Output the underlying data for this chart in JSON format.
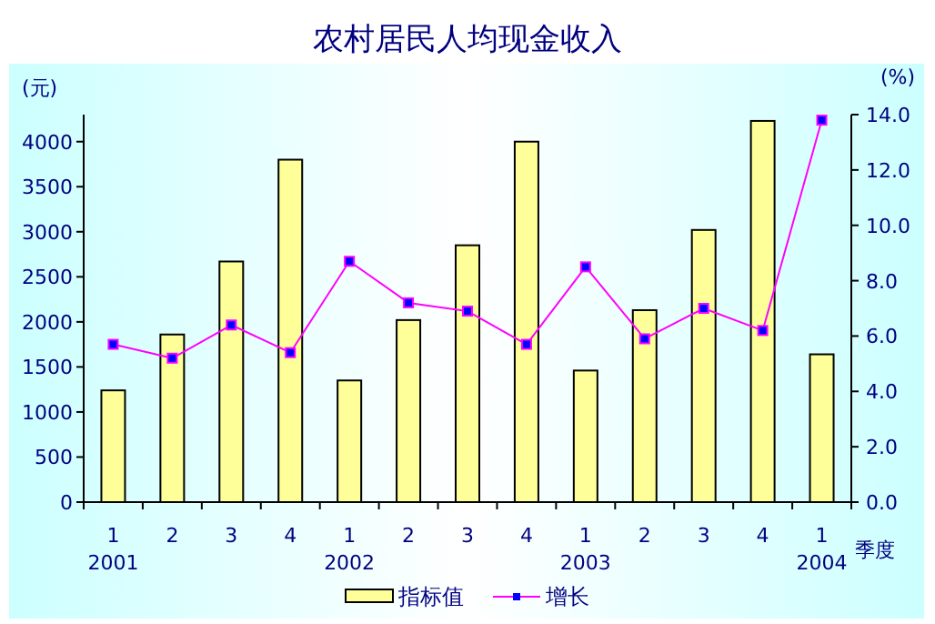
{
  "chart_data": {
    "type": "bar",
    "title": "农村居民人均现金收入",
    "ylabel": "(元)",
    "y2label": "(%)",
    "xlabel": "季度",
    "categories": [
      "1",
      "2",
      "3",
      "4",
      "1",
      "2",
      "3",
      "4",
      "1",
      "2",
      "3",
      "4",
      "1"
    ],
    "annotations": [
      "2001",
      "2002",
      "2003",
      "2004"
    ],
    "series": [
      {
        "name": "指标值",
        "color": "#ffff99",
        "values": [
          1240,
          1860,
          2670,
          3800,
          1350,
          2020,
          2850,
          4000,
          1460,
          2130,
          3020,
          4230,
          1640
        ]
      },
      {
        "name": "增长",
        "type": "line",
        "axis": "y2",
        "color": "#ff00ff",
        "marker": "square",
        "values": [
          5.7,
          5.2,
          6.4,
          5.4,
          8.7,
          7.2,
          6.9,
          5.7,
          8.5,
          5.9,
          7.0,
          6.2,
          13.8
        ]
      }
    ],
    "ylim": [
      0,
      4300
    ],
    "yticks": [
      0,
      500,
      1000,
      1500,
      2000,
      2500,
      3000,
      3500,
      4000
    ],
    "y2lim": [
      0,
      14
    ],
    "y2ticks": [
      {
        "value": 0,
        "label": "0.0"
      },
      {
        "value": 2,
        "label": "2.0"
      },
      {
        "value": 4,
        "label": "4.0"
      },
      {
        "value": 6,
        "label": "6.0"
      },
      {
        "value": 8,
        "label": "8.0"
      },
      {
        "value": 10,
        "label": "10.0"
      },
      {
        "value": 12,
        "label": "12.0"
      },
      {
        "value": 14,
        "label": "14.0"
      }
    ],
    "grid": false,
    "legend": "bottom"
  }
}
